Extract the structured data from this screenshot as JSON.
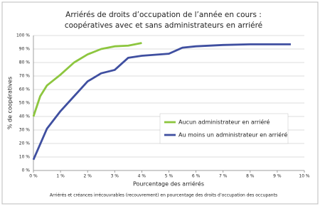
{
  "chart_data": {
    "type": "line",
    "title": [
      "Arriérés de droits d’occupation de l’année en cours :",
      "coopératives avec et sans administrateurs en arriéré"
    ],
    "x_label": "Pourcentage des arriérés",
    "y_label": "% de coopératives",
    "note": "Arriérés et créances irrécouvrables (recouvrement) en pourcentage des droits d’occupation des occupants",
    "xlim": [
      0,
      10
    ],
    "ylim": [
      0,
      100
    ],
    "xticks": [
      {
        "value": 0,
        "label": "0 %"
      },
      {
        "value": 1,
        "label": "1 %"
      },
      {
        "value": 2,
        "label": "2 %"
      },
      {
        "value": 3,
        "label": "3 %"
      },
      {
        "value": 4,
        "label": "4 %"
      },
      {
        "value": 5,
        "label": "5 %"
      },
      {
        "value": 6,
        "label": "6 %"
      },
      {
        "value": 7,
        "label": "7 %"
      },
      {
        "value": 8,
        "label": "8 %"
      },
      {
        "value": 9,
        "label": "9 %"
      },
      {
        "value": 10,
        "label": "10 %"
      }
    ],
    "yticks": [
      {
        "value": 0,
        "label": "0 %"
      },
      {
        "value": 10,
        "label": "10 %"
      },
      {
        "value": 20,
        "label": "20 %"
      },
      {
        "value": 30,
        "label": "30 %"
      },
      {
        "value": 40,
        "label": "40 %"
      },
      {
        "value": 50,
        "label": "50 %"
      },
      {
        "value": 60,
        "label": "60 %"
      },
      {
        "value": 70,
        "label": "70 %"
      },
      {
        "value": 80,
        "label": "80 %"
      },
      {
        "value": 90,
        "label": "90 %"
      },
      {
        "value": 100,
        "label": "100 %"
      }
    ],
    "grid": true,
    "legend": "lower right",
    "series": [
      {
        "name": "Aucun administrateur en arriéré",
        "color": "#8dc63f",
        "x": [
          0,
          0.25,
          0.5,
          0.75,
          1,
          1.5,
          2,
          2.5,
          3,
          3.5,
          4
        ],
        "values": [
          40,
          55,
          63,
          67,
          71,
          80,
          86,
          90,
          92,
          92.5,
          94.5
        ]
      },
      {
        "name": "Au moins un administrateur en arriéré",
        "color": "#3f4fa0",
        "x": [
          0,
          0.5,
          1,
          1.5,
          2,
          2.5,
          3,
          3.5,
          4,
          5,
          5.5,
          6,
          7,
          8,
          9,
          9.5
        ],
        "values": [
          8,
          31,
          44,
          55,
          66,
          72,
          74.5,
          83.5,
          85,
          86.5,
          91,
          92,
          93,
          93.5,
          93.5,
          93.5
        ]
      }
    ]
  }
}
